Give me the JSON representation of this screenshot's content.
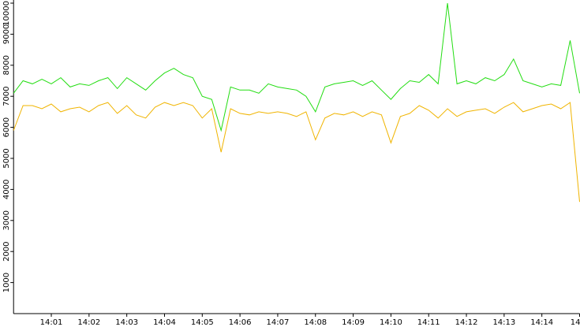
{
  "chart_data": {
    "type": "line",
    "categories": [
      null,
      null,
      null,
      null,
      "14:01",
      null,
      null,
      null,
      "14:02",
      null,
      null,
      null,
      "14:03",
      null,
      null,
      null,
      "14:04",
      null,
      null,
      null,
      "14:05",
      null,
      null,
      null,
      "14:06",
      null,
      null,
      null,
      "14:07",
      null,
      null,
      null,
      "14:08",
      null,
      null,
      null,
      "14:09",
      null,
      null,
      null,
      "14:10",
      null,
      null,
      null,
      "14:11",
      null,
      null,
      null,
      "14:12",
      null,
      null,
      null,
      "14:13",
      null,
      null,
      null,
      "14:14",
      null,
      null,
      null,
      "14"
    ],
    "series": [
      {
        "color": "#22dd11",
        "values": [
          7100,
          7500,
          7400,
          7550,
          7400,
          7600,
          7300,
          7400,
          7350,
          7500,
          7600,
          7250,
          7600,
          7400,
          7200,
          7500,
          7750,
          7900,
          7700,
          7600,
          7000,
          6900,
          5900,
          7300,
          7200,
          7200,
          7100,
          7400,
          7300,
          7250,
          7200,
          7000,
          6500,
          7300,
          7400,
          7450,
          7500,
          7350,
          7500,
          7200,
          6900,
          7250,
          7500,
          7450,
          7700,
          7400,
          10000,
          7400,
          7500,
          7400,
          7600,
          7500,
          7700,
          8200,
          7500,
          7400,
          7300,
          7400,
          7350,
          8800,
          7100
        ]
      },
      {
        "color": "#f0b400",
        "values": [
          5900,
          6700,
          6700,
          6600,
          6750,
          6500,
          6600,
          6650,
          6500,
          6700,
          6800,
          6450,
          6700,
          6400,
          6300,
          6650,
          6800,
          6700,
          6800,
          6700,
          6300,
          6600,
          5200,
          6600,
          6450,
          6400,
          6500,
          6450,
          6500,
          6450,
          6350,
          6500,
          5600,
          6300,
          6450,
          6400,
          6500,
          6350,
          6500,
          6400,
          5500,
          6350,
          6450,
          6700,
          6550,
          6300,
          6600,
          6350,
          6500,
          6550,
          6600,
          6450,
          6650,
          6800,
          6500,
          6600,
          6700,
          6750,
          6600,
          6800,
          3600
        ]
      }
    ],
    "ylim": [
      0,
      10000
    ],
    "yticks": [
      1000,
      2000,
      3000,
      4000,
      5000,
      6000,
      7000,
      8000,
      9000,
      10000
    ]
  }
}
